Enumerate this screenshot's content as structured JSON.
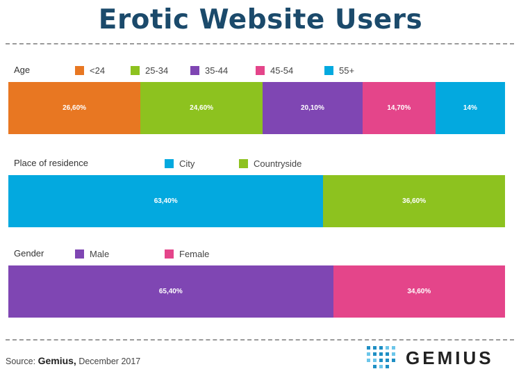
{
  "title": "Erotic Website Users",
  "colors": {
    "orange": "#e87722",
    "green": "#8dc21f",
    "purple": "#7f46b3",
    "pink": "#e4458a",
    "blue": "#03a9df",
    "title": "#1b4a6b"
  },
  "chart_data": [
    {
      "type": "bar",
      "stacked": "100%",
      "orientation": "horizontal",
      "label": "Age",
      "series": [
        {
          "name": "<24",
          "value": 26.6,
          "display": "26,60%",
          "color": "#e87722"
        },
        {
          "name": "25-34",
          "value": 24.6,
          "display": "24,60%",
          "color": "#8dc21f"
        },
        {
          "name": "35-44",
          "value": 20.1,
          "display": "20,10%",
          "color": "#7f46b3"
        },
        {
          "name": "45-54",
          "value": 14.7,
          "display": "14,70%",
          "color": "#e4458a"
        },
        {
          "name": "55+",
          "value": 14,
          "display": "14%",
          "color": "#03a9df"
        }
      ]
    },
    {
      "type": "bar",
      "stacked": "100%",
      "orientation": "horizontal",
      "label": "Place of residence",
      "series": [
        {
          "name": "City",
          "value": 63.4,
          "display": "63,40%",
          "color": "#03a9df"
        },
        {
          "name": "Countryside",
          "value": 36.6,
          "display": "36,60%",
          "color": "#8dc21f"
        }
      ]
    },
    {
      "type": "bar",
      "stacked": "100%",
      "orientation": "horizontal",
      "label": "Gender",
      "series": [
        {
          "name": "Male",
          "value": 65.4,
          "display": "65,40%",
          "color": "#7f46b3"
        },
        {
          "name": "Female",
          "value": 34.6,
          "display": "34,60%",
          "color": "#e4458a"
        }
      ]
    }
  ],
  "source": {
    "prefix": "Source:",
    "name": "Gemius,",
    "date": "December 2017"
  },
  "logo": {
    "text": "GEMIUS",
    "dot_color": "#1f8fc4"
  }
}
